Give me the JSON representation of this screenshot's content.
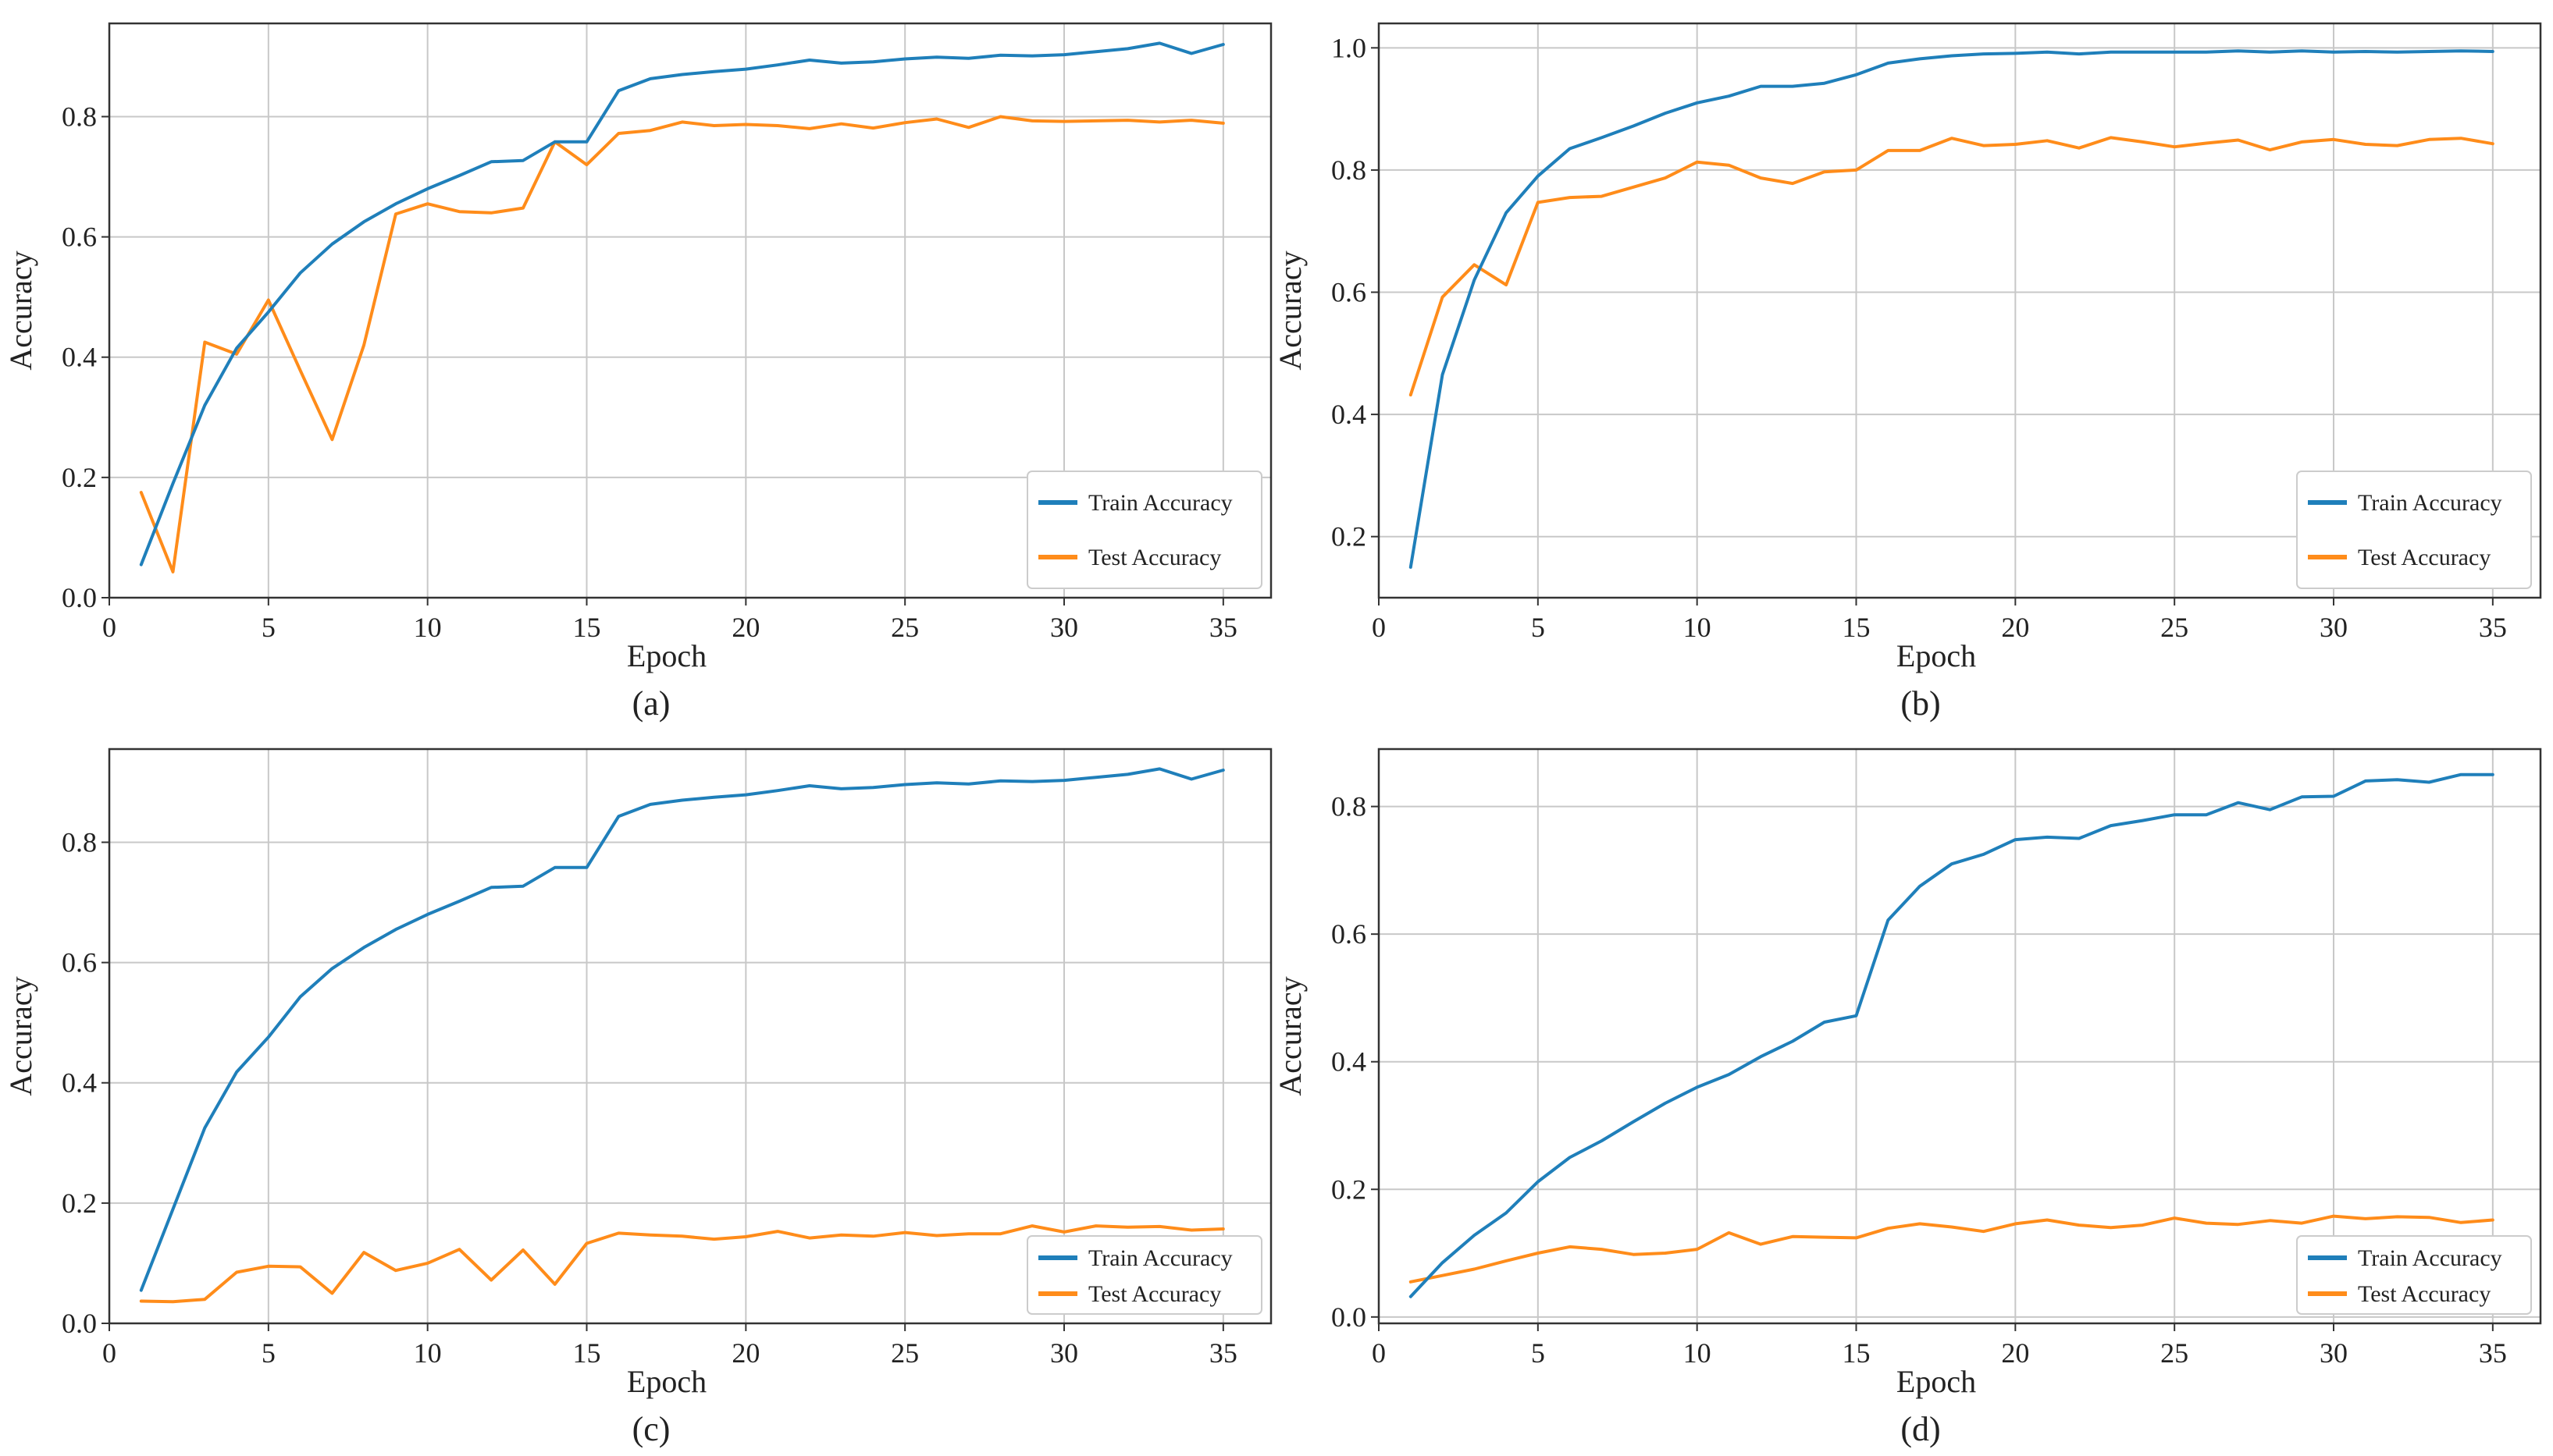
{
  "colors": {
    "train": "#1f7fba",
    "test": "#ff8c1a",
    "grid": "#c8c8c8",
    "axis": "#333333",
    "legend_border": "#cccccc"
  },
  "chart_data": [
    {
      "type": "line",
      "caption": "(a)",
      "xlabel": "Epoch",
      "ylabel": "Accuracy",
      "xlim": [
        0.0,
        36.5
      ],
      "ylim": [
        0.0,
        0.955
      ],
      "xticks": [
        0,
        5,
        10,
        15,
        20,
        25,
        30,
        35
      ],
      "yticks": [
        0.0,
        0.2,
        0.4,
        0.6,
        0.8
      ],
      "yformat": 1,
      "legend": {
        "position": "lower-right"
      },
      "x": [
        1,
        2,
        3,
        4,
        5,
        6,
        7,
        8,
        9,
        10,
        11,
        12,
        13,
        14,
        15,
        16,
        17,
        18,
        19,
        20,
        21,
        22,
        23,
        24,
        25,
        26,
        27,
        28,
        29,
        30,
        31,
        32,
        33,
        34,
        35
      ],
      "series": [
        {
          "name": "Train Accuracy",
          "color_key": "train",
          "values": [
            0.055,
            0.19,
            0.32,
            0.415,
            0.475,
            0.54,
            0.588,
            0.625,
            0.655,
            0.68,
            0.702,
            0.725,
            0.727,
            0.758,
            0.758,
            0.843,
            0.863,
            0.87,
            0.875,
            0.879,
            0.886,
            0.894,
            0.889,
            0.891,
            0.896,
            0.899,
            0.897,
            0.902,
            0.901,
            0.903,
            0.908,
            0.913,
            0.922,
            0.905,
            0.92
          ]
        },
        {
          "name": "Test Accuracy",
          "color_key": "test",
          "values": [
            0.175,
            0.043,
            0.425,
            0.405,
            0.495,
            0.378,
            0.263,
            0.42,
            0.638,
            0.655,
            0.642,
            0.64,
            0.648,
            0.758,
            0.72,
            0.772,
            0.777,
            0.791,
            0.785,
            0.787,
            0.785,
            0.78,
            0.788,
            0.781,
            0.79,
            0.796,
            0.782,
            0.8,
            0.793,
            0.792,
            0.793,
            0.794,
            0.791,
            0.794,
            0.789
          ]
        }
      ]
    },
    {
      "type": "line",
      "caption": "(b)",
      "xlabel": "Epoch",
      "ylabel": "Accuracy",
      "xlim": [
        0.0,
        36.5
      ],
      "ylim": [
        0.1,
        1.04
      ],
      "xticks": [
        0,
        5,
        10,
        15,
        20,
        25,
        30,
        35
      ],
      "yticks": [
        0.2,
        0.4,
        0.6,
        0.8,
        1.0
      ],
      "yformat": 1,
      "legend": {
        "position": "lower-right"
      },
      "x": [
        1,
        2,
        3,
        4,
        5,
        6,
        7,
        8,
        9,
        10,
        11,
        12,
        13,
        14,
        15,
        16,
        17,
        18,
        19,
        20,
        21,
        22,
        23,
        24,
        25,
        26,
        27,
        28,
        29,
        30,
        31,
        32,
        33,
        34,
        35
      ],
      "series": [
        {
          "name": "Train Accuracy",
          "color_key": "train",
          "values": [
            0.15,
            0.465,
            0.62,
            0.73,
            0.79,
            0.835,
            0.853,
            0.872,
            0.893,
            0.91,
            0.921,
            0.937,
            0.937,
            0.942,
            0.956,
            0.975,
            0.982,
            0.987,
            0.99,
            0.991,
            0.993,
            0.99,
            0.993,
            0.993,
            0.993,
            0.993,
            0.995,
            0.993,
            0.995,
            0.993,
            0.994,
            0.993,
            0.994,
            0.995,
            0.994
          ]
        },
        {
          "name": "Test Accuracy",
          "color_key": "test",
          "values": [
            0.432,
            0.592,
            0.645,
            0.612,
            0.747,
            0.755,
            0.757,
            0.772,
            0.787,
            0.813,
            0.808,
            0.787,
            0.778,
            0.797,
            0.8,
            0.832,
            0.832,
            0.852,
            0.84,
            0.842,
            0.848,
            0.836,
            0.853,
            0.846,
            0.838,
            0.844,
            0.849,
            0.833,
            0.846,
            0.85,
            0.842,
            0.84,
            0.85,
            0.852,
            0.843
          ]
        }
      ]
    },
    {
      "type": "line",
      "caption": "(c)",
      "xlabel": "Epoch",
      "ylabel": "Accuracy",
      "xlim": [
        0.0,
        36.5
      ],
      "ylim": [
        0.0,
        0.955
      ],
      "xticks": [
        0,
        5,
        10,
        15,
        20,
        25,
        30,
        35
      ],
      "yticks": [
        0.0,
        0.2,
        0.4,
        0.6,
        0.8
      ],
      "yformat": 1,
      "legend": {
        "position": "lower-right"
      },
      "x": [
        1,
        2,
        3,
        4,
        5,
        6,
        7,
        8,
        9,
        10,
        11,
        12,
        13,
        14,
        15,
        16,
        17,
        18,
        19,
        20,
        21,
        22,
        23,
        24,
        25,
        26,
        27,
        28,
        29,
        30,
        31,
        32,
        33,
        34,
        35
      ],
      "series": [
        {
          "name": "Train Accuracy",
          "color_key": "train",
          "values": [
            0.055,
            0.19,
            0.325,
            0.418,
            0.476,
            0.543,
            0.59,
            0.625,
            0.655,
            0.68,
            0.702,
            0.725,
            0.727,
            0.758,
            0.758,
            0.843,
            0.863,
            0.87,
            0.875,
            0.879,
            0.886,
            0.894,
            0.889,
            0.891,
            0.896,
            0.899,
            0.897,
            0.902,
            0.901,
            0.903,
            0.908,
            0.913,
            0.922,
            0.905,
            0.92
          ]
        },
        {
          "name": "Test Accuracy",
          "color_key": "test",
          "values": [
            0.037,
            0.036,
            0.04,
            0.085,
            0.095,
            0.094,
            0.05,
            0.118,
            0.088,
            0.1,
            0.123,
            0.072,
            0.122,
            0.065,
            0.133,
            0.15,
            0.147,
            0.145,
            0.14,
            0.144,
            0.153,
            0.142,
            0.147,
            0.145,
            0.151,
            0.146,
            0.149,
            0.149,
            0.162,
            0.152,
            0.162,
            0.16,
            0.161,
            0.155,
            0.157
          ]
        }
      ]
    },
    {
      "type": "line",
      "caption": "(d)",
      "xlabel": "Epoch",
      "ylabel": "Accuracy",
      "xlim": [
        0.0,
        36.5
      ],
      "ylim": [
        -0.01,
        0.89
      ],
      "xticks": [
        0,
        5,
        10,
        15,
        20,
        25,
        30,
        35
      ],
      "yticks": [
        0.0,
        0.2,
        0.4,
        0.6,
        0.8
      ],
      "yformat": 1,
      "legend": {
        "position": "lower-right"
      },
      "x": [
        1,
        2,
        3,
        4,
        5,
        6,
        7,
        8,
        9,
        10,
        11,
        12,
        13,
        14,
        15,
        16,
        17,
        18,
        19,
        20,
        21,
        22,
        23,
        24,
        25,
        26,
        27,
        28,
        29,
        30,
        31,
        32,
        33,
        34,
        35
      ],
      "series": [
        {
          "name": "Train Accuracy",
          "color_key": "train",
          "values": [
            0.032,
            0.085,
            0.128,
            0.163,
            0.212,
            0.25,
            0.276,
            0.306,
            0.335,
            0.36,
            0.38,
            0.408,
            0.432,
            0.462,
            0.472,
            0.622,
            0.675,
            0.71,
            0.725,
            0.748,
            0.752,
            0.75,
            0.77,
            0.778,
            0.787,
            0.787,
            0.806,
            0.795,
            0.815,
            0.816,
            0.84,
            0.842,
            0.838,
            0.85,
            0.85
          ]
        },
        {
          "name": "Test Accuracy",
          "color_key": "test",
          "values": [
            0.055,
            0.065,
            0.075,
            0.088,
            0.1,
            0.11,
            0.106,
            0.098,
            0.1,
            0.106,
            0.132,
            0.114,
            0.126,
            0.125,
            0.124,
            0.139,
            0.146,
            0.141,
            0.134,
            0.146,
            0.152,
            0.144,
            0.14,
            0.144,
            0.155,
            0.147,
            0.145,
            0.151,
            0.147,
            0.158,
            0.154,
            0.157,
            0.156,
            0.148,
            0.152
          ]
        }
      ]
    }
  ]
}
